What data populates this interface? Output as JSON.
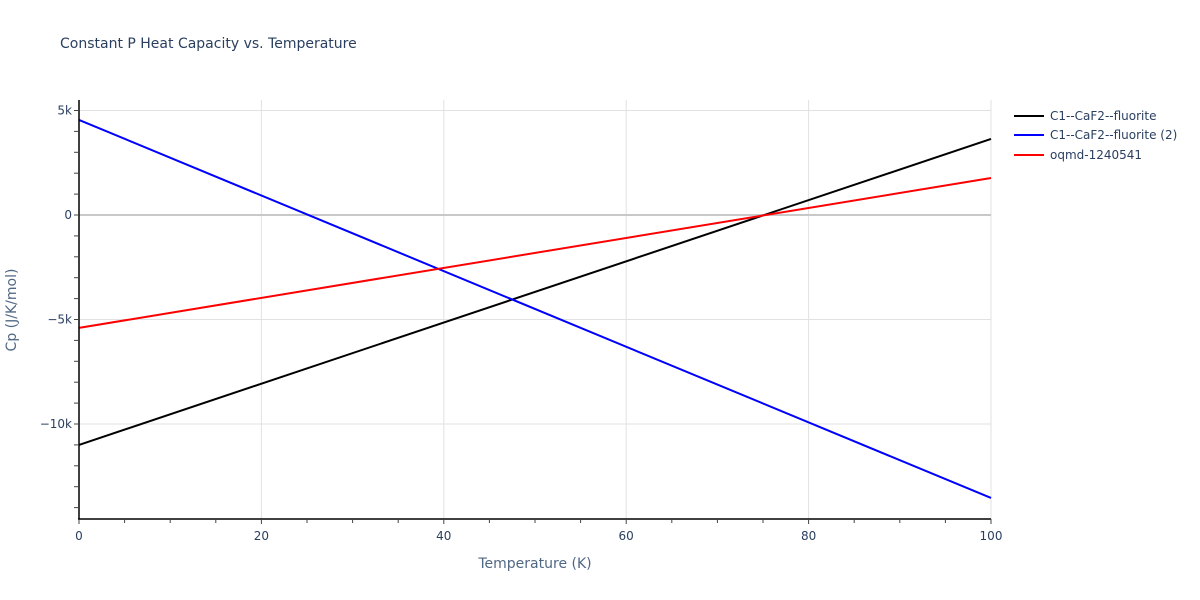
{
  "chart_data": {
    "type": "line",
    "title": "Constant P Heat Capacity vs. Temperature",
    "xlabel": "Temperature (K)",
    "ylabel": "Cp (J/K/mol)",
    "xlim": [
      0,
      100
    ],
    "ylim": [
      -14500,
      5500
    ],
    "x_ticks": [
      0,
      20,
      40,
      60,
      80,
      100
    ],
    "x_tick_labels": [
      "0",
      "20",
      "40",
      "60",
      "80",
      "100"
    ],
    "y_ticks": [
      5000,
      0,
      -5000,
      -10000
    ],
    "y_tick_labels": [
      "5k",
      "0",
      "−5k",
      "−10k"
    ],
    "grid": true,
    "legend_position": "right",
    "x": [
      0,
      100
    ],
    "series": [
      {
        "name": "C1--CaF2--fluorite",
        "color": "#000000",
        "values": [
          -11000,
          3640
        ]
      },
      {
        "name": "C1--CaF2--fluorite (2)",
        "color": "#0000ff",
        "values": [
          4550,
          -13540
        ]
      },
      {
        "name": "oqmd-1240541",
        "color": "#ff0000",
        "values": [
          -5400,
          1770
        ]
      }
    ]
  }
}
